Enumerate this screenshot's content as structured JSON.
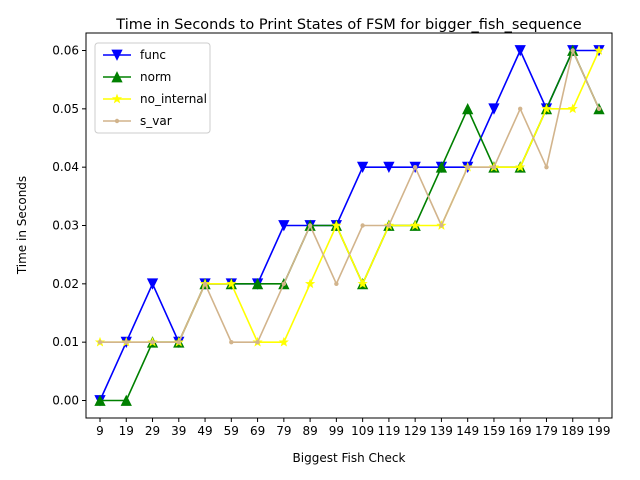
{
  "chart_data": {
    "type": "line",
    "title": "Time in Seconds to Print States of FSM for bigger_fish_sequence",
    "xlabel": "Biggest Fish Check",
    "ylabel": "Time in Seconds",
    "categories": [
      "9",
      "19",
      "29",
      "39",
      "49",
      "59",
      "69",
      "79",
      "89",
      "99",
      "109",
      "119",
      "129",
      "139",
      "149",
      "159",
      "169",
      "179",
      "189",
      "199"
    ],
    "ylim": [
      -0.003,
      0.063
    ],
    "yticks": [
      "0.00",
      "0.01",
      "0.02",
      "0.03",
      "0.04",
      "0.05",
      "0.06"
    ],
    "legend_position": "upper left",
    "grid": false,
    "series": [
      {
        "name": "func",
        "color": "#0000ff",
        "marker": "triangle-down",
        "values": [
          0.0,
          0.01,
          0.02,
          0.01,
          0.02,
          0.02,
          0.02,
          0.03,
          0.03,
          0.03,
          0.04,
          0.04,
          0.04,
          0.04,
          0.04,
          0.05,
          0.06,
          0.05,
          0.06,
          0.06
        ]
      },
      {
        "name": "norm",
        "color": "#008000",
        "marker": "triangle-up",
        "values": [
          0.0,
          0.0,
          0.01,
          0.01,
          0.02,
          0.02,
          0.02,
          0.02,
          0.03,
          0.03,
          0.02,
          0.03,
          0.03,
          0.04,
          0.05,
          0.04,
          0.04,
          0.05,
          0.06,
          0.05
        ]
      },
      {
        "name": "no_internal",
        "color": "#ffff00",
        "marker": "star",
        "values": [
          0.01,
          0.01,
          0.01,
          0.01,
          0.02,
          0.02,
          0.01,
          0.01,
          0.02,
          0.03,
          0.02,
          0.03,
          0.03,
          0.03,
          0.04,
          0.04,
          0.04,
          0.05,
          0.05,
          0.06
        ]
      },
      {
        "name": "s_var",
        "color": "#d2b48c",
        "marker": "dot",
        "values": [
          0.01,
          0.01,
          0.01,
          0.01,
          0.02,
          0.01,
          0.01,
          0.02,
          0.03,
          0.02,
          0.03,
          0.03,
          0.04,
          0.03,
          0.04,
          0.04,
          0.05,
          0.04,
          0.06,
          0.05
        ]
      }
    ]
  }
}
